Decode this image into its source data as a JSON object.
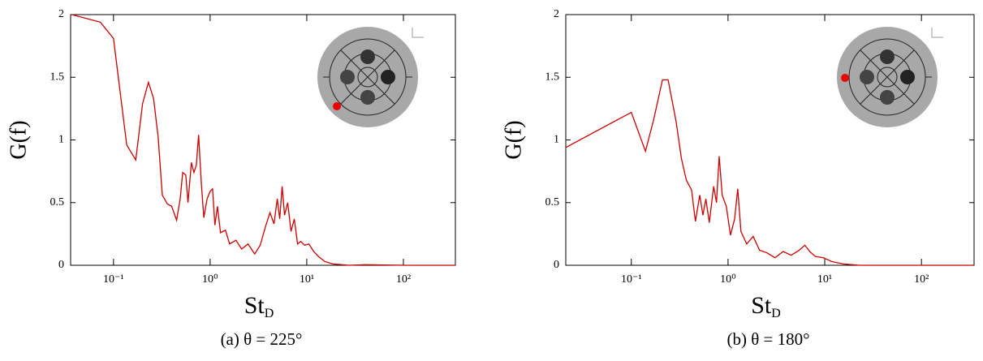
{
  "chart_data": [
    {
      "type": "line",
      "caption": "(a) θ = 225°",
      "ylabel": "G(f)",
      "xlabel": "St",
      "xlabel_subscript": "D",
      "color": "#cc0000",
      "xscale": "log",
      "xlim": [
        0.036,
        345
      ],
      "ylim": [
        0,
        2
      ],
      "xticks": [
        {
          "value": 0.1,
          "label": "10⁻¹"
        },
        {
          "value": 1,
          "label": "10⁰"
        },
        {
          "value": 10,
          "label": "10¹"
        },
        {
          "value": 100,
          "label": "10²"
        }
      ],
      "yticks": [
        0,
        0.5,
        1,
        1.5,
        2
      ],
      "x": [
        0.037,
        0.073,
        0.1,
        0.137,
        0.17,
        0.2,
        0.23,
        0.26,
        0.29,
        0.32,
        0.36,
        0.4,
        0.45,
        0.49,
        0.52,
        0.56,
        0.59,
        0.64,
        0.68,
        0.72,
        0.76,
        0.81,
        0.86,
        0.93,
        1.0,
        1.06,
        1.12,
        1.19,
        1.28,
        1.44,
        1.59,
        1.85,
        2.12,
        2.47,
        2.89,
        3.3,
        3.71,
        4.16,
        4.58,
        4.95,
        5.25,
        5.56,
        5.89,
        6.35,
        6.87,
        7.43,
        8.03,
        8.67,
        9.5,
        10.5,
        11.8,
        13.2,
        15.4,
        18.7,
        27.5,
        40,
        105,
        345
      ],
      "values": [
        2.0,
        1.94,
        1.81,
        0.96,
        0.84,
        1.29,
        1.46,
        1.33,
        1.02,
        0.56,
        0.49,
        0.47,
        0.36,
        0.53,
        0.74,
        0.72,
        0.5,
        0.82,
        0.74,
        0.8,
        1.04,
        0.66,
        0.38,
        0.53,
        0.59,
        0.61,
        0.32,
        0.47,
        0.26,
        0.28,
        0.17,
        0.2,
        0.13,
        0.17,
        0.09,
        0.16,
        0.3,
        0.42,
        0.33,
        0.53,
        0.37,
        0.63,
        0.4,
        0.5,
        0.27,
        0.37,
        0.17,
        0.19,
        0.16,
        0.17,
        0.11,
        0.07,
        0.03,
        0.01,
        0.0,
        0.005,
        0,
        0
      ]
    },
    {
      "type": "line",
      "caption": "(b) θ = 180°",
      "ylabel": "G(f)",
      "xlabel": "St",
      "xlabel_subscript": "D",
      "color": "#cc0000",
      "xscale": "log",
      "xlim": [
        0.021,
        350
      ],
      "ylim": [
        0,
        2
      ],
      "xticks": [
        {
          "value": 0.1,
          "label": "10⁻¹"
        },
        {
          "value": 1,
          "label": "10⁰"
        },
        {
          "value": 10,
          "label": "10¹"
        },
        {
          "value": 100,
          "label": "10²"
        }
      ],
      "yticks": [
        0,
        0.5,
        1,
        1.5,
        2
      ],
      "x": [
        0.021,
        0.1,
        0.14,
        0.17,
        0.21,
        0.24,
        0.29,
        0.33,
        0.37,
        0.42,
        0.46,
        0.51,
        0.55,
        0.59,
        0.64,
        0.71,
        0.76,
        0.81,
        0.87,
        0.96,
        1.06,
        1.17,
        1.26,
        1.36,
        1.56,
        1.82,
        2.12,
        2.52,
        3.06,
        3.71,
        4.49,
        5.45,
        6.23,
        7.0,
        8.0,
        9.7,
        11.8,
        15.7,
        23,
        344
      ],
      "values": [
        0.94,
        1.22,
        0.91,
        1.16,
        1.48,
        1.48,
        1.15,
        0.85,
        0.68,
        0.6,
        0.35,
        0.56,
        0.4,
        0.53,
        0.34,
        0.63,
        0.5,
        0.87,
        0.56,
        0.47,
        0.24,
        0.37,
        0.61,
        0.27,
        0.17,
        0.23,
        0.12,
        0.1,
        0.06,
        0.11,
        0.08,
        0.12,
        0.16,
        0.11,
        0.07,
        0.06,
        0.03,
        0.01,
        0,
        0
      ]
    }
  ]
}
